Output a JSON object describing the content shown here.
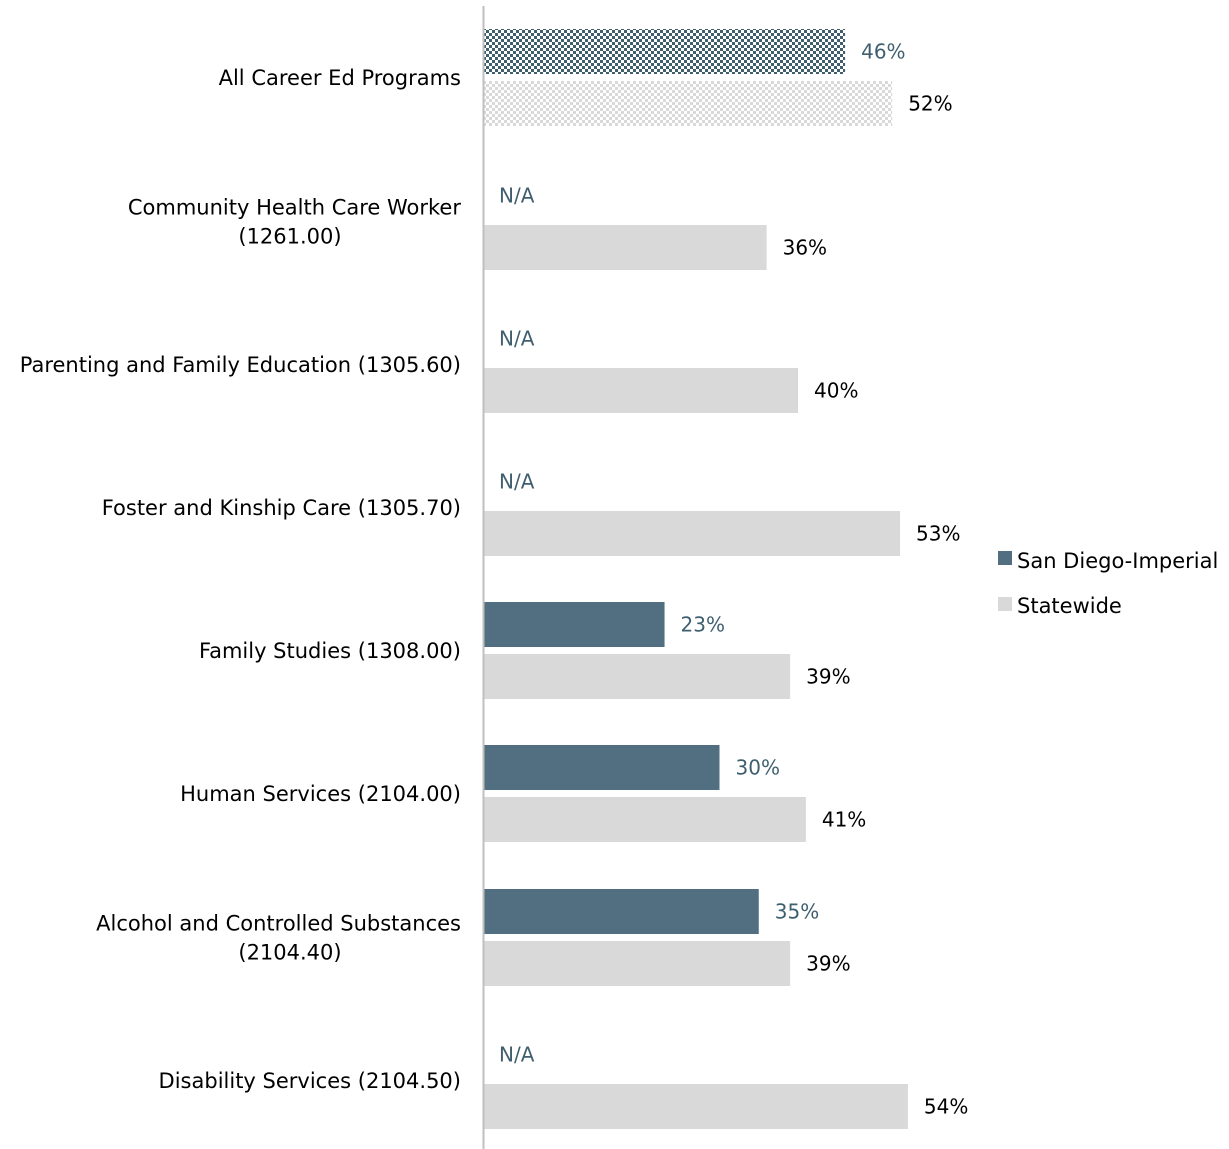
{
  "colors": {
    "regional": "#516f80",
    "statewide": "#d9d9d9",
    "regional_label": "#3f5f70",
    "statewide_label": "#000000",
    "axis": "#bfbfbf",
    "pattern_regional": "#3f5f6c",
    "pattern_statewide": "#d9d9d9"
  },
  "chart_data": {
    "type": "bar",
    "orientation": "horizontal",
    "title": "",
    "xlabel": "",
    "ylabel": "",
    "xlim": [
      0,
      60
    ],
    "grid": false,
    "legend_position": "right",
    "categories": [
      [
        "All Career Ed Programs"
      ],
      [
        "Community Health Care Worker",
        "(1261.00)"
      ],
      [
        "Parenting and Family Education (1305.60)"
      ],
      [
        "Foster and Kinship Care (1305.70)"
      ],
      [
        "Family Studies (1308.00)"
      ],
      [
        "Human Services (2104.00)"
      ],
      [
        "Alcohol and Controlled Substances",
        "(2104.40)"
      ],
      [
        "Disability Services (2104.50)"
      ]
    ],
    "series": [
      {
        "name": "San Diego-Imperial",
        "values": [
          46,
          null,
          null,
          null,
          23,
          30,
          35,
          null
        ],
        "labels": [
          "46%",
          "N/A",
          "N/A",
          "N/A",
          "23%",
          "30%",
          "35%",
          "N/A"
        ]
      },
      {
        "name": "Statewide",
        "values": [
          52,
          36,
          40,
          53,
          39,
          41,
          39,
          54
        ],
        "labels": [
          "52%",
          "36%",
          "40%",
          "53%",
          "39%",
          "41%",
          "39%",
          "54%"
        ]
      }
    ],
    "patterned_categories": [
      0
    ]
  }
}
